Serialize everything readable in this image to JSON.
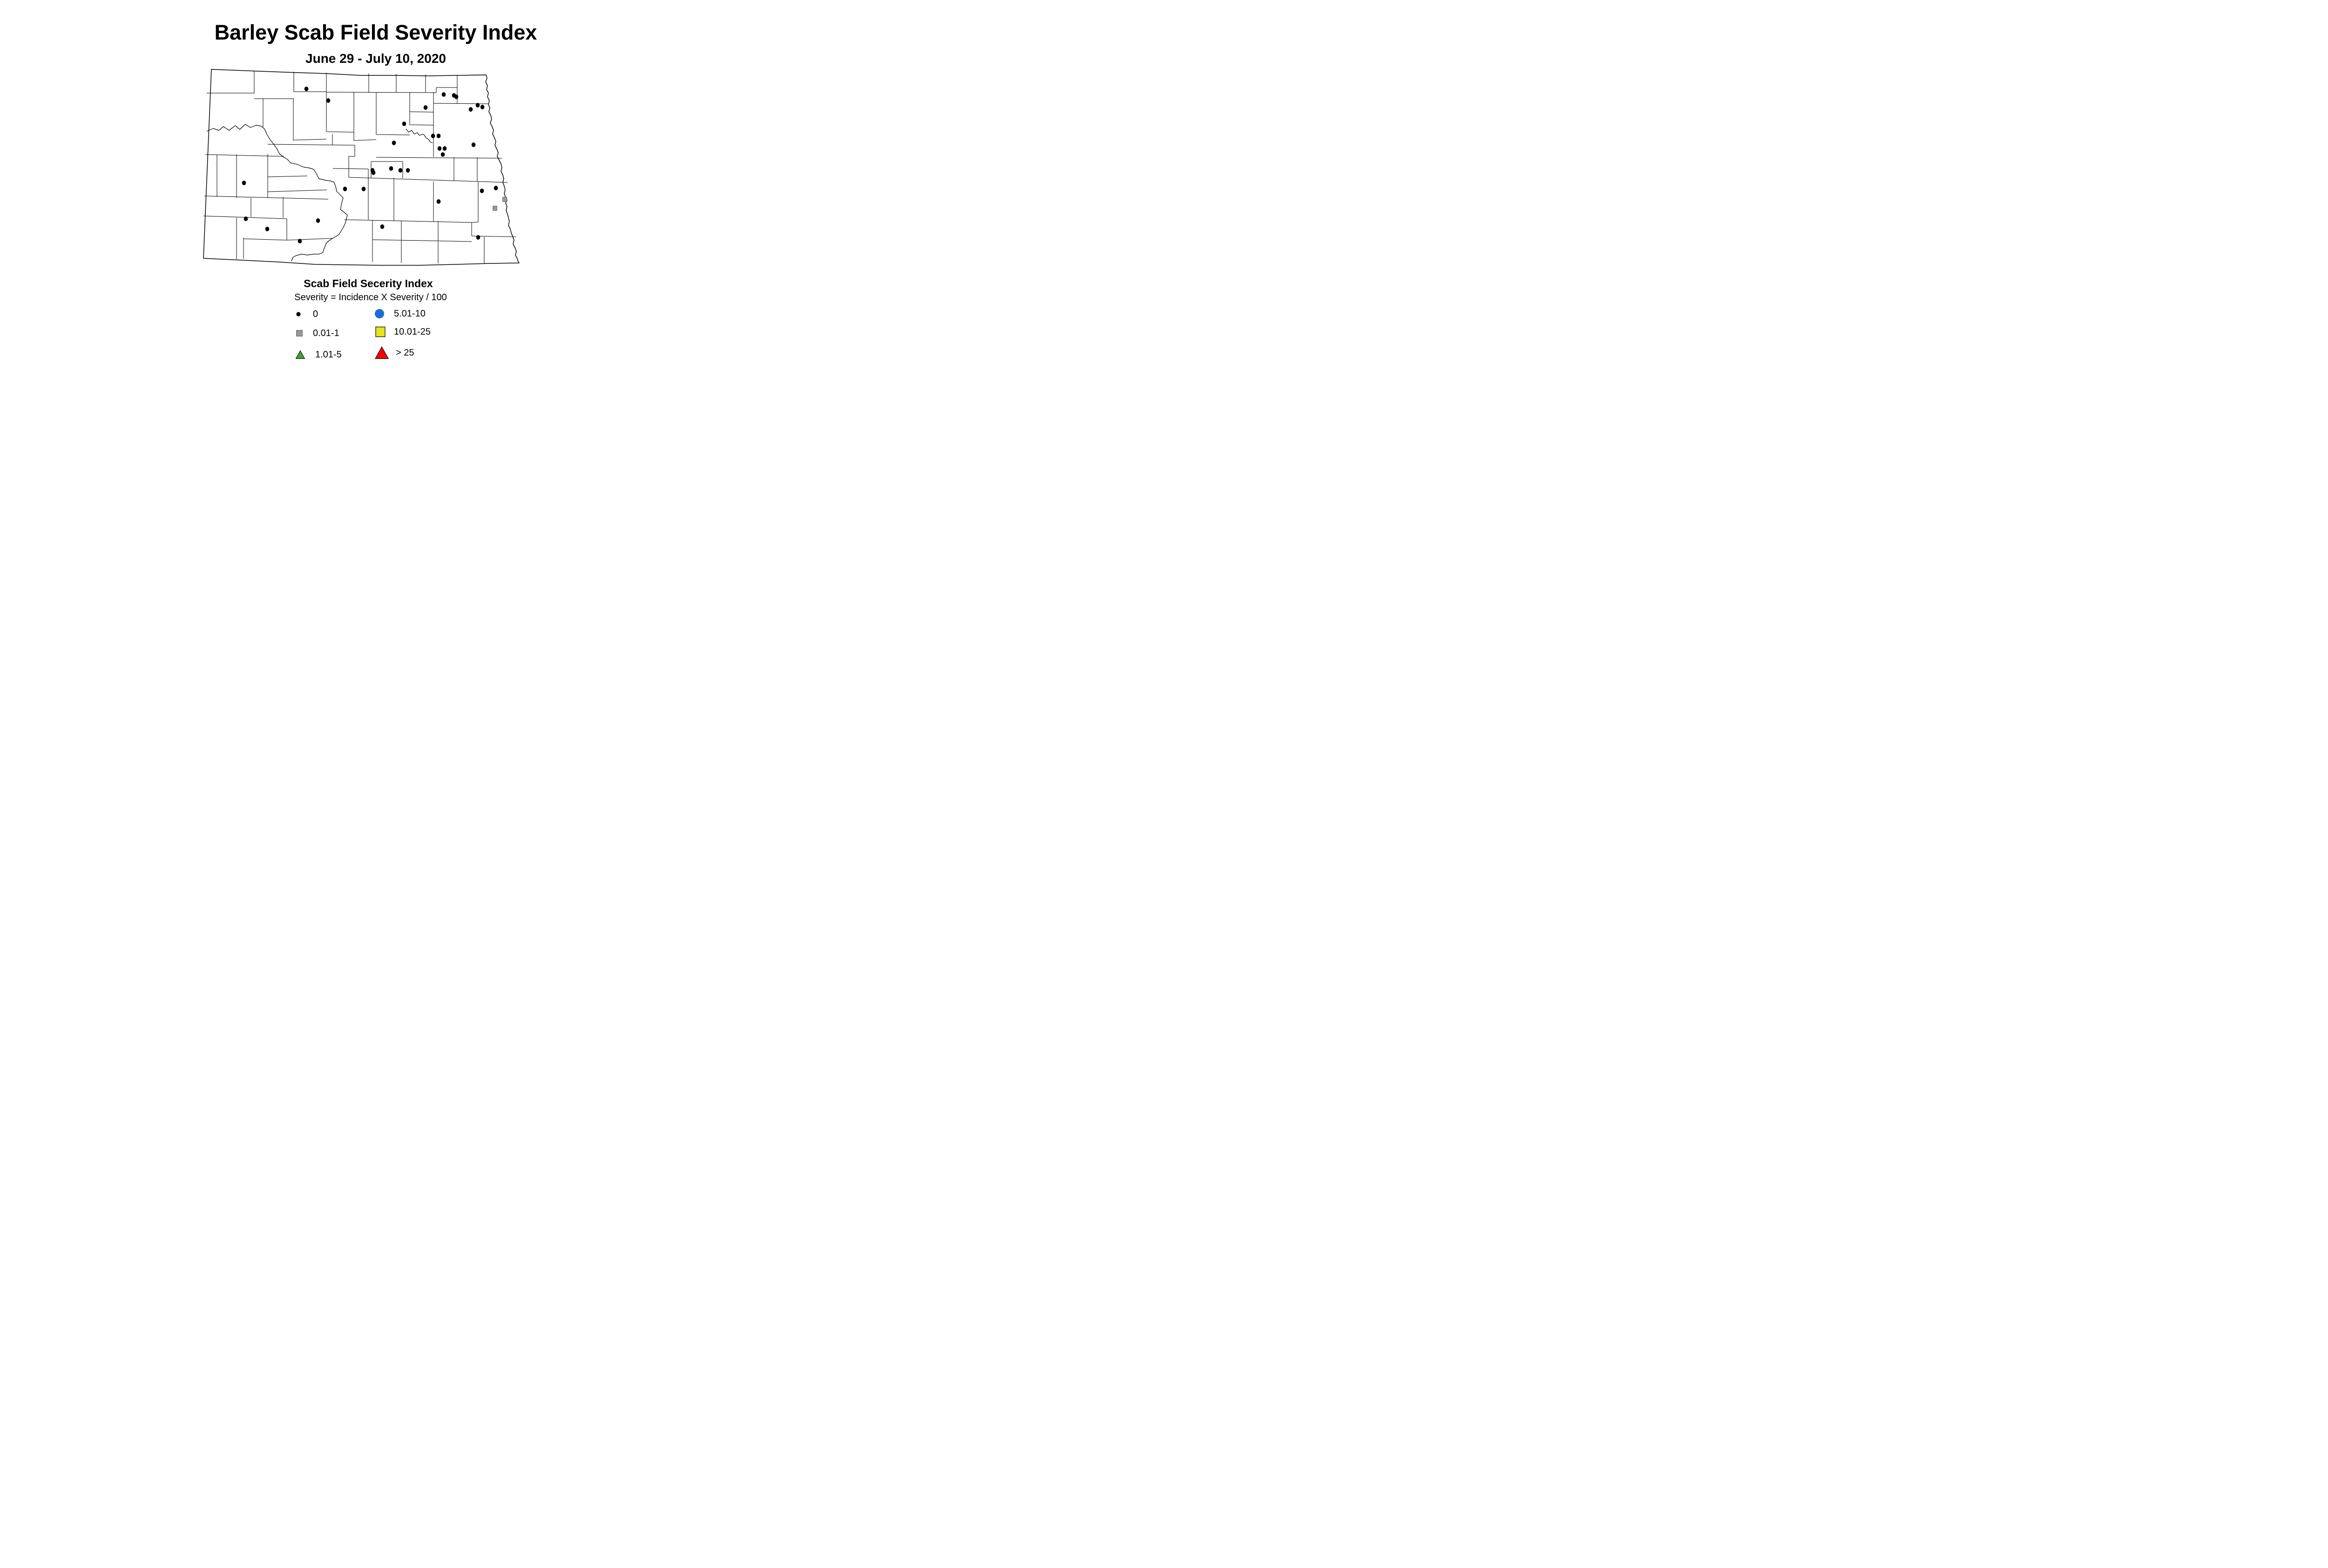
{
  "title": "Barley Scab Field Severity Index",
  "subtitle": "June 29 - July 10, 2020",
  "legend": {
    "title": "Scab Field Secerity Index",
    "formula": "Severity = Incidence X Severity / 100",
    "items": [
      {
        "symbol": "black-dot",
        "label": "0",
        "color": "#000000",
        "outline": "none"
      },
      {
        "symbol": "gray-square",
        "label": "0.01-1",
        "color": "#9A989A",
        "outline": "#4d4d4d"
      },
      {
        "symbol": "green-triangle",
        "label": "1.01-5",
        "color": "#3FA12E",
        "outline": "#000000"
      },
      {
        "symbol": "blue-circle",
        "label": "5.01-10",
        "color": "#1C6BD9",
        "outline": "none"
      },
      {
        "symbol": "yellow-square",
        "label": "10.01-25",
        "color": "#E6E41C",
        "outline": "#000000"
      },
      {
        "symbol": "red-triangle",
        "label": "> 25",
        "color": "#FF0000",
        "outline": "#000000"
      }
    ]
  },
  "map": {
    "region_label": "North Dakota county outline map",
    "marker_legend_mapping": {
      "zero": "0",
      "low": "0.01-1"
    },
    "markers": {
      "zero": [
        [
          658,
          191
        ],
        [
          705,
          216
        ],
        [
          953,
          203
        ],
        [
          975,
          205
        ],
        [
          980,
          208
        ],
        [
          914,
          231
        ],
        [
          1026,
          226
        ],
        [
          1011,
          235
        ],
        [
          1036,
          230
        ],
        [
          868,
          266
        ],
        [
          930,
          292
        ],
        [
          942,
          292
        ],
        [
          846,
          307
        ],
        [
          944,
          319
        ],
        [
          955,
          319
        ],
        [
          951,
          332
        ],
        [
          1017,
          311
        ],
        [
          800,
          366
        ],
        [
          802,
          371
        ],
        [
          840,
          362
        ],
        [
          860,
          366
        ],
        [
          876,
          366
        ],
        [
          524,
          393
        ],
        [
          741,
          406
        ],
        [
          781,
          406
        ],
        [
          942,
          433
        ],
        [
          1035,
          410
        ],
        [
          1065,
          404
        ],
        [
          528,
          470
        ],
        [
          683,
          474
        ],
        [
          574,
          492
        ],
        [
          821,
          487
        ],
        [
          644,
          518
        ],
        [
          1027,
          510
        ]
      ],
      "low": [
        [
          1084,
          428
        ],
        [
          1063,
          447
        ]
      ]
    },
    "counts": {
      "zero": 34,
      "low": 2
    }
  }
}
